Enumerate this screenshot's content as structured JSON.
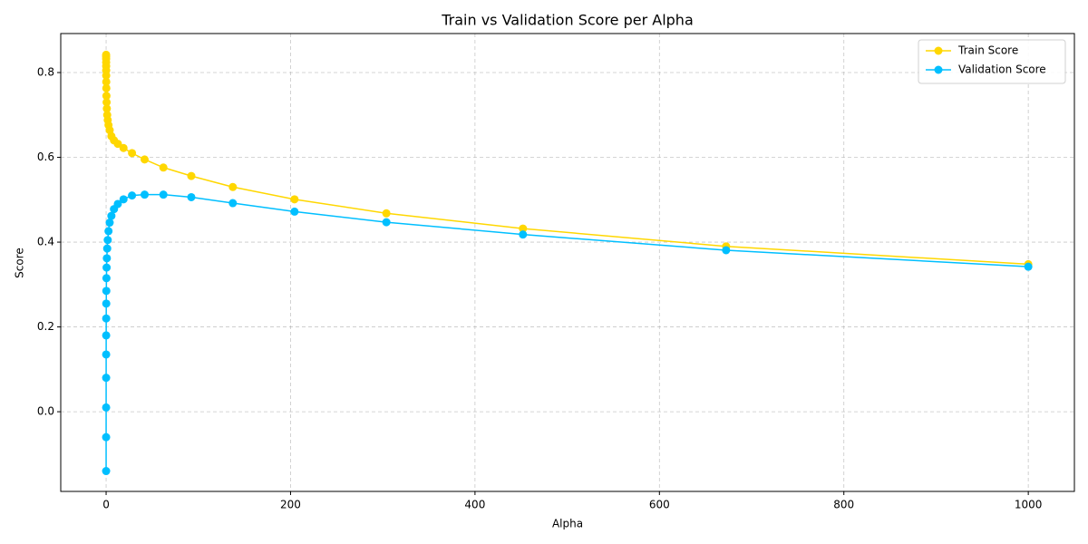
{
  "chart_data": {
    "type": "line",
    "title": "Train vs Validation Score per Alpha",
    "x_label": "Alpha",
    "y_label": "Score",
    "x": [
      0.01,
      0.01487,
      0.02212,
      0.0329,
      0.04894,
      0.07279,
      0.1083,
      0.161,
      0.2395,
      0.3562,
      0.5298,
      0.788,
      1.172,
      1.743,
      2.593,
      3.857,
      5.736,
      8.532,
      12.69,
      18.88,
      28.07,
      41.75,
      62.1,
      92.37,
      137.4,
      204.3,
      303.9,
      452.0,
      672.3,
      1000
    ],
    "series": [
      {
        "name": "Train Score",
        "color": "#ffd700",
        "values": [
          0.842,
          0.838,
          0.832,
          0.824,
          0.815,
          0.805,
          0.793,
          0.778,
          0.763,
          0.745,
          0.73,
          0.715,
          0.7,
          0.688,
          0.676,
          0.664,
          0.65,
          0.64,
          0.632,
          0.622,
          0.61,
          0.595,
          0.576,
          0.556,
          0.53,
          0.501,
          0.468,
          0.432,
          0.39,
          0.348
        ]
      },
      {
        "name": "Validation Score",
        "color": "#00bfff",
        "values": [
          -0.14,
          -0.06,
          0.01,
          0.08,
          0.135,
          0.18,
          0.22,
          0.255,
          0.285,
          0.315,
          0.34,
          0.362,
          0.385,
          0.405,
          0.426,
          0.446,
          0.462,
          0.478,
          0.49,
          0.501,
          0.51,
          0.512,
          0.512,
          0.506,
          0.492,
          0.472,
          0.447,
          0.418,
          0.381,
          0.342
        ]
      }
    ],
    "xlim": [
      -49.2,
      1050
    ],
    "ylim": [
      -0.188,
      0.892
    ],
    "xticks": [
      0,
      200,
      400,
      600,
      800,
      1000
    ],
    "yticks": [
      {
        "value": 0,
        "label": "0.0"
      },
      {
        "value": 0.2,
        "label": "0.2"
      },
      {
        "value": 0.4,
        "label": "0.4"
      },
      {
        "value": 0.6,
        "label": "0.6"
      },
      {
        "value": 0.8,
        "label": "0.8"
      }
    ],
    "grid": true,
    "legend": "upper right"
  }
}
